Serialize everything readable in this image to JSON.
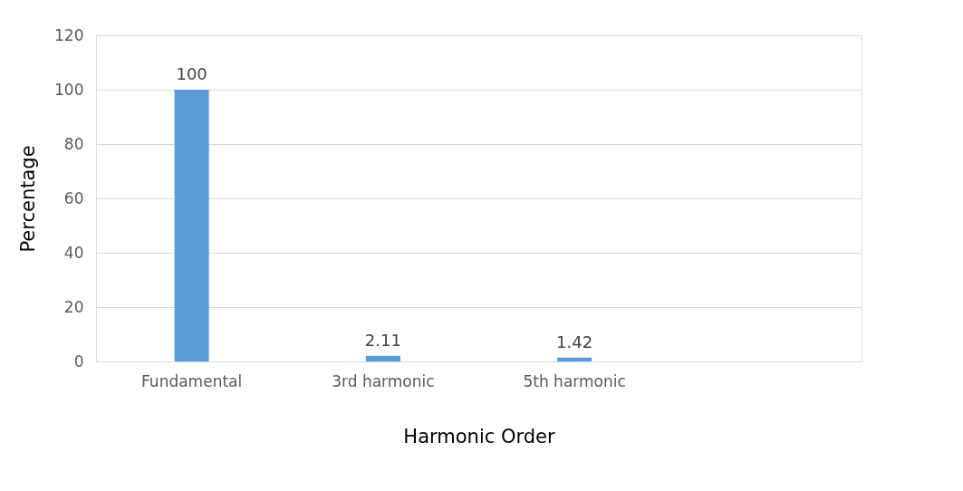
{
  "chart_data": {
    "type": "bar",
    "xlabel": "Harmonic Order",
    "ylabel": "Percentage",
    "categories": [
      "Fundamental",
      "3rd harmonic",
      "5th harmonic",
      null
    ],
    "values": [
      100,
      2.11,
      1.42,
      null
    ],
    "color": "#5b9bd5",
    "ylim": [
      0,
      120
    ],
    "yticks": [
      0,
      20,
      40,
      60,
      80,
      100,
      120
    ],
    "grid": "y",
    "data_labels": true
  }
}
